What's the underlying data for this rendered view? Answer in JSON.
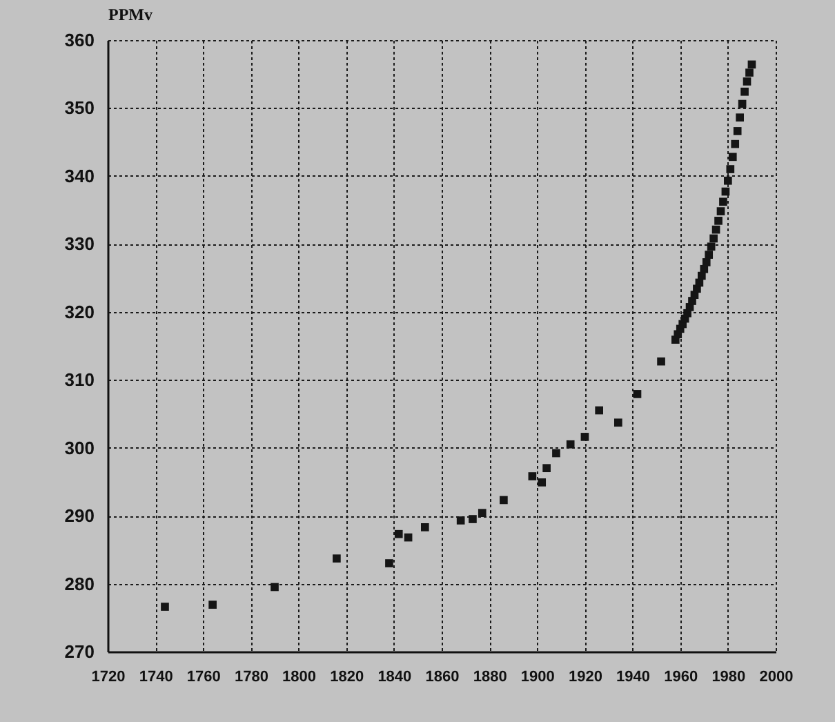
{
  "chart_data": {
    "type": "scatter",
    "ylabel": "PPMv",
    "x": [
      1744,
      1764,
      1790,
      1816,
      1838,
      1842,
      1846,
      1853,
      1868,
      1873,
      1877,
      1886,
      1898,
      1902,
      1904,
      1908,
      1914,
      1920,
      1926,
      1934,
      1942,
      1952,
      1958,
      1959,
      1960,
      1961,
      1962,
      1963,
      1964,
      1965,
      1966,
      1967,
      1968,
      1969,
      1970,
      1971,
      1972,
      1973,
      1974,
      1975,
      1976,
      1977,
      1978,
      1979,
      1980,
      1981,
      1982,
      1983,
      1984,
      1985,
      1986,
      1987,
      1988,
      1989,
      1990
    ],
    "values": [
      276.6,
      276.9,
      279.5,
      283.7,
      283.0,
      287.3,
      286.8,
      288.3,
      289.3,
      289.5,
      290.4,
      292.3,
      295.8,
      294.9,
      297.0,
      299.2,
      300.5,
      301.6,
      305.5,
      303.7,
      307.9,
      312.7,
      315.9,
      316.7,
      317.5,
      318.2,
      319.0,
      319.8,
      320.7,
      321.6,
      322.5,
      323.4,
      324.3,
      325.3,
      326.3,
      327.3,
      328.4,
      329.6,
      330.8,
      332.1,
      333.4,
      334.8,
      336.2,
      337.7,
      339.3,
      341.0,
      342.8,
      344.7,
      346.6,
      348.6,
      350.6,
      352.4,
      353.9,
      355.2,
      356.4
    ],
    "color": "#151515",
    "marker": "square",
    "xlim": [
      1720,
      2000
    ],
    "xticks": [
      1720,
      1740,
      1760,
      1780,
      1800,
      1820,
      1840,
      1860,
      1880,
      1900,
      1920,
      1940,
      1960,
      1980,
      2000
    ],
    "ylim": [
      270,
      360
    ],
    "yticks": [
      270,
      280,
      290,
      300,
      310,
      320,
      330,
      340,
      350,
      360
    ],
    "grid": true
  }
}
